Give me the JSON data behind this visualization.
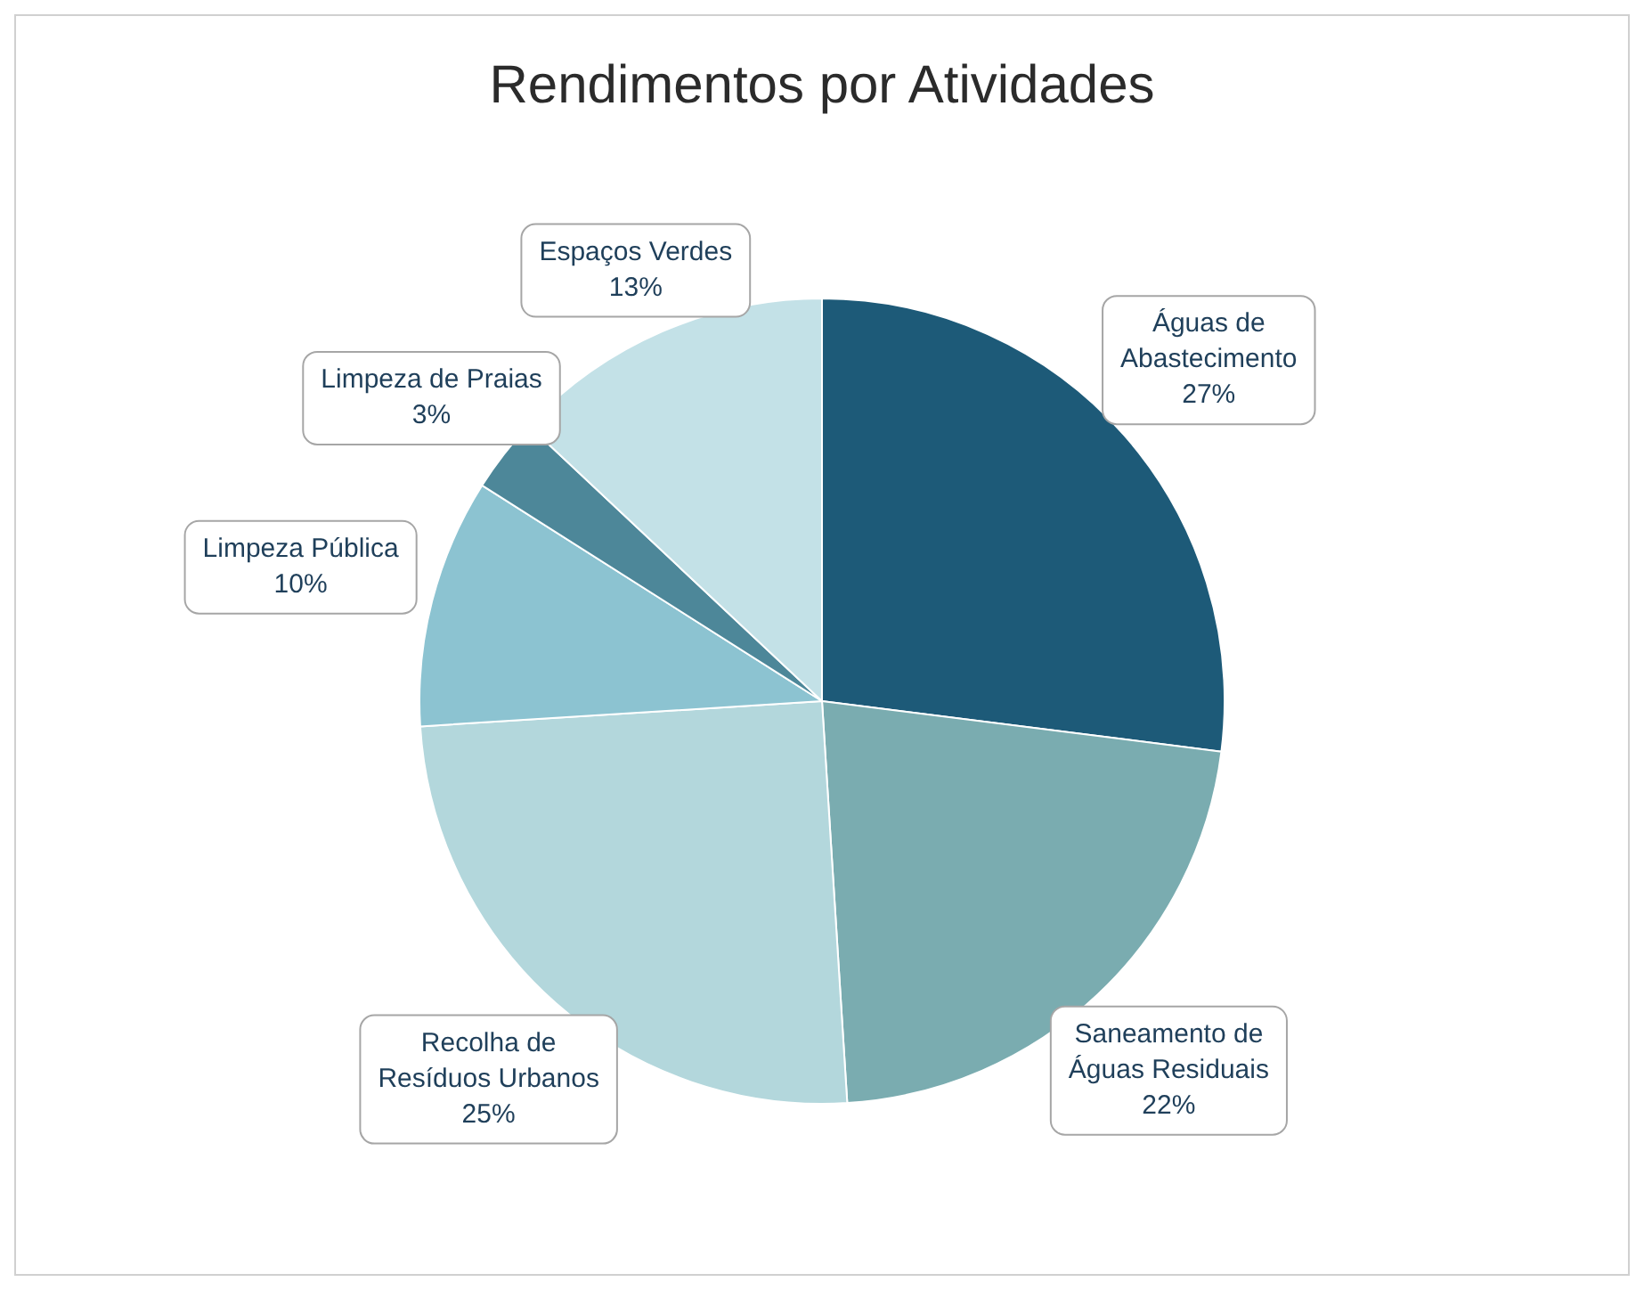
{
  "chart_data": {
    "type": "pie",
    "title": "Rendimentos por Atividades",
    "categories": [
      "Águas de Abastecimento",
      "Saneamento de Águas Residuais",
      "Recolha de Resíduos Urbanos",
      "Limpeza Pública",
      "Limpeza de Praias",
      "Espaços Verdes"
    ],
    "values": [
      27,
      22,
      25,
      10,
      3,
      13
    ],
    "value_labels": [
      "27%",
      "22%",
      "25%",
      "10%",
      "3%",
      "13%"
    ],
    "colors": [
      "#1d5a78",
      "#7aacb0",
      "#b3d7dc",
      "#8cc3d1",
      "#4d8799",
      "#c3e1e7"
    ],
    "legend": false
  }
}
